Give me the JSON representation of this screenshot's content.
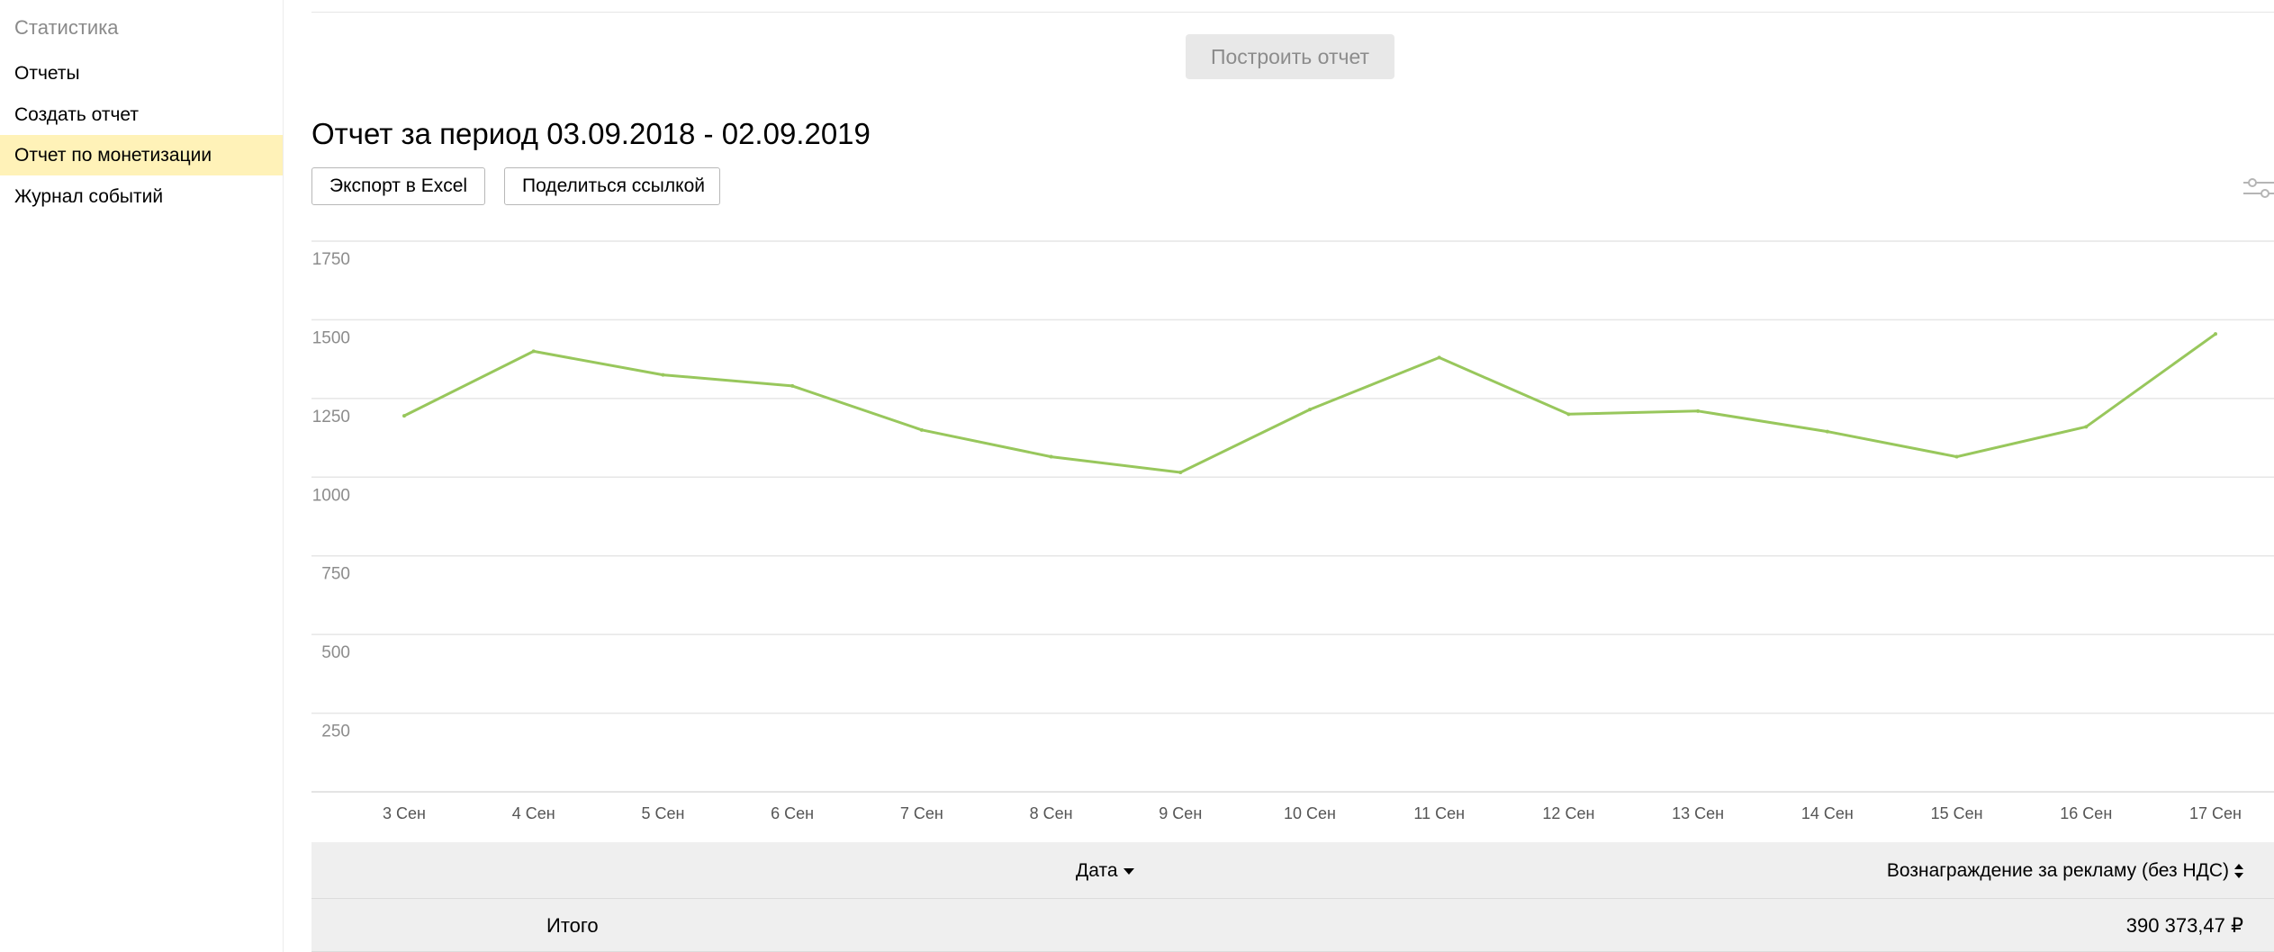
{
  "sidebar": {
    "title": "Статистика",
    "items": [
      {
        "label": "Отчеты"
      },
      {
        "label": "Создать отчет"
      },
      {
        "label": "Отчет по монетизации"
      },
      {
        "label": "Журнал событий"
      }
    ]
  },
  "toolbar": {
    "build_label": "Построить отчет"
  },
  "report": {
    "title": "Отчет за период 03.09.2018 - 02.09.2019",
    "export_label": "Экспорт в Excel",
    "share_label": "Поделиться ссылкой"
  },
  "colors": {
    "line": "#98c75c",
    "active_nav": "#fff2b8",
    "grid": "#e6e6e6"
  },
  "chart_data": {
    "type": "line",
    "categories": [
      "3 Сен",
      "4 Сен",
      "5 Сен",
      "6 Сен",
      "7 Сен",
      "8 Сен",
      "9 Сен",
      "10 Сен",
      "11 Сен",
      "12 Сен",
      "13 Сен",
      "14 Сен",
      "15 Сен",
      "16 Сен",
      "17 Сен"
    ],
    "values": [
      1195,
      1400,
      1325,
      1290,
      1150,
      1065,
      1015,
      1215,
      1380,
      1200,
      1210,
      1145,
      1065,
      1160,
      1455
    ],
    "ylim": [
      0,
      1750
    ],
    "yticks": [
      "250",
      "500",
      "750",
      "1000",
      "1250",
      "1500",
      "1750"
    ],
    "grid": true,
    "legend": "none"
  },
  "table": {
    "columns": [
      {
        "label": "Дата"
      },
      {
        "label": "Вознаграждение за рекламу (без НДС)"
      }
    ],
    "total": {
      "label": "Итого",
      "value": "390 373,47 ₽"
    }
  }
}
